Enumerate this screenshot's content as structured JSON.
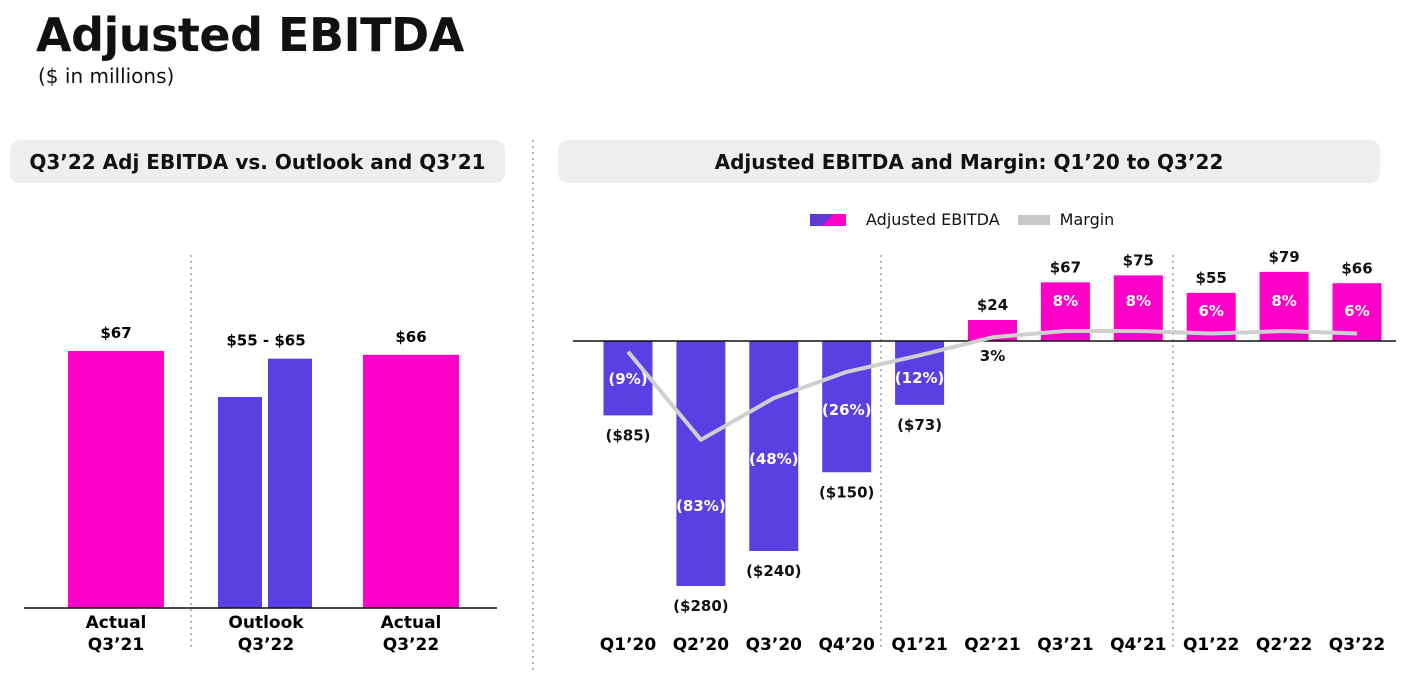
{
  "page": {
    "title": "Adjusted EBITDA",
    "subtitle": "($ in millions)"
  },
  "colors": {
    "magenta": "#ff00c8",
    "purple": "#5b3fe3",
    "margin_line": "#cfcfcf",
    "header_bg": "#eeeeee"
  },
  "chart_data": [
    {
      "type": "bar",
      "title": "Q3’22 Adj EBITDA vs. Outlook and Q3’21",
      "categories": [
        "Actual Q3’21",
        "Outlook Q3’22",
        "Actual Q3’22"
      ],
      "category_lines": [
        [
          "Actual",
          "Q3’21"
        ],
        [
          "Outlook",
          "Q3’22"
        ],
        [
          "Actual",
          "Q3’22"
        ]
      ],
      "bars": [
        {
          "category_index": 0,
          "value": 67,
          "color": "magenta"
        },
        {
          "category_index": 1,
          "value": 55,
          "color": "purple"
        },
        {
          "category_index": 1,
          "value": 65,
          "color": "purple"
        },
        {
          "category_index": 2,
          "value": 66,
          "color": "magenta"
        }
      ],
      "value_labels": [
        "$67",
        "$55 - $65",
        "$66"
      ],
      "ylim": [
        0,
        80
      ]
    },
    {
      "type": "bar",
      "title": "Adjusted EBITDA and Margin: Q1’20 to Q3’22",
      "legend": [
        "Adjusted EBITDA",
        "Margin"
      ],
      "categories": [
        "Q1’20",
        "Q2’20",
        "Q3’20",
        "Q4’20",
        "Q1’21",
        "Q2’21",
        "Q3’21",
        "Q4’21",
        "Q1’22",
        "Q2’22",
        "Q3’22"
      ],
      "series": [
        {
          "name": "Adjusted EBITDA",
          "values": [
            -85,
            -280,
            -240,
            -150,
            -73,
            24,
            67,
            75,
            55,
            79,
            66
          ]
        },
        {
          "name": "Margin",
          "values": [
            -9,
            -83,
            -48,
            -26,
            -12,
            3,
            8,
            8,
            6,
            8,
            6
          ]
        }
      ],
      "value_labels": [
        "($85)",
        "($280)",
        "($240)",
        "($150)",
        "($73)",
        "$24",
        "$67",
        "$75",
        "$55",
        "$79",
        "$66"
      ],
      "margin_labels": [
        "(9%)",
        "(83%)",
        "(48%)",
        "(26%)",
        "(12%)",
        "3%",
        "8%",
        "8%",
        "6%",
        "8%",
        "6%"
      ],
      "ylim": [
        -300,
        90
      ]
    }
  ]
}
